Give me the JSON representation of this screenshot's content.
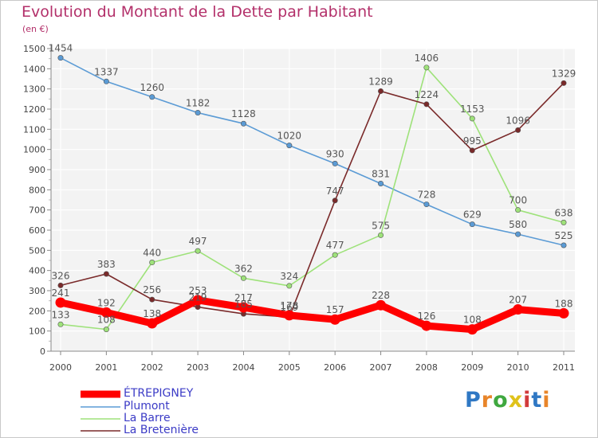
{
  "header": {
    "title": "Evolution du Montant de la Dette par Habitant",
    "subtitle": "(en €)"
  },
  "logo": {
    "text": "Proxiti",
    "colors": [
      "#2f78c4",
      "#e8852a",
      "#3fa83f",
      "#e0c21a",
      "#d23b3b",
      "#2f78c4",
      "#e8852a"
    ]
  },
  "chart_data": {
    "type": "line",
    "title": "Evolution du Montant de la Dette par Habitant",
    "subtitle": "(en €)",
    "xlabel": "",
    "ylabel": "",
    "x": [
      "2000",
      "2001",
      "2002",
      "2003",
      "2004",
      "2005",
      "2006",
      "2007",
      "2008",
      "2009",
      "2010",
      "2011"
    ],
    "ylim": [
      0,
      1500
    ],
    "yticks": [
      0,
      100,
      200,
      300,
      400,
      500,
      600,
      700,
      800,
      900,
      1000,
      1100,
      1200,
      1300,
      1400,
      1500
    ],
    "grid": true,
    "legend_position": "bottom-left",
    "series": [
      {
        "name": "ÉTREPIGNEY",
        "color": "#ff0000",
        "values": [
          241,
          192,
          138,
          253,
          217,
          178,
          157,
          228,
          126,
          108,
          207,
          188
        ]
      },
      {
        "name": "Plumont",
        "color": "#5b9bd5",
        "values": [
          1454,
          1337,
          1260,
          1182,
          1128,
          1020,
          930,
          831,
          728,
          629,
          580,
          525
        ]
      },
      {
        "name": "La Barre",
        "color": "#9ee27a",
        "values": [
          133,
          108,
          440,
          497,
          362,
          324,
          477,
          575,
          1406,
          1153,
          700,
          638
        ]
      },
      {
        "name": "La Bretenière",
        "color": "#7a2a2a",
        "values": [
          326,
          383,
          256,
          219,
          185,
          169,
          747,
          1289,
          1224,
          995,
          1096,
          1329
        ]
      }
    ]
  }
}
